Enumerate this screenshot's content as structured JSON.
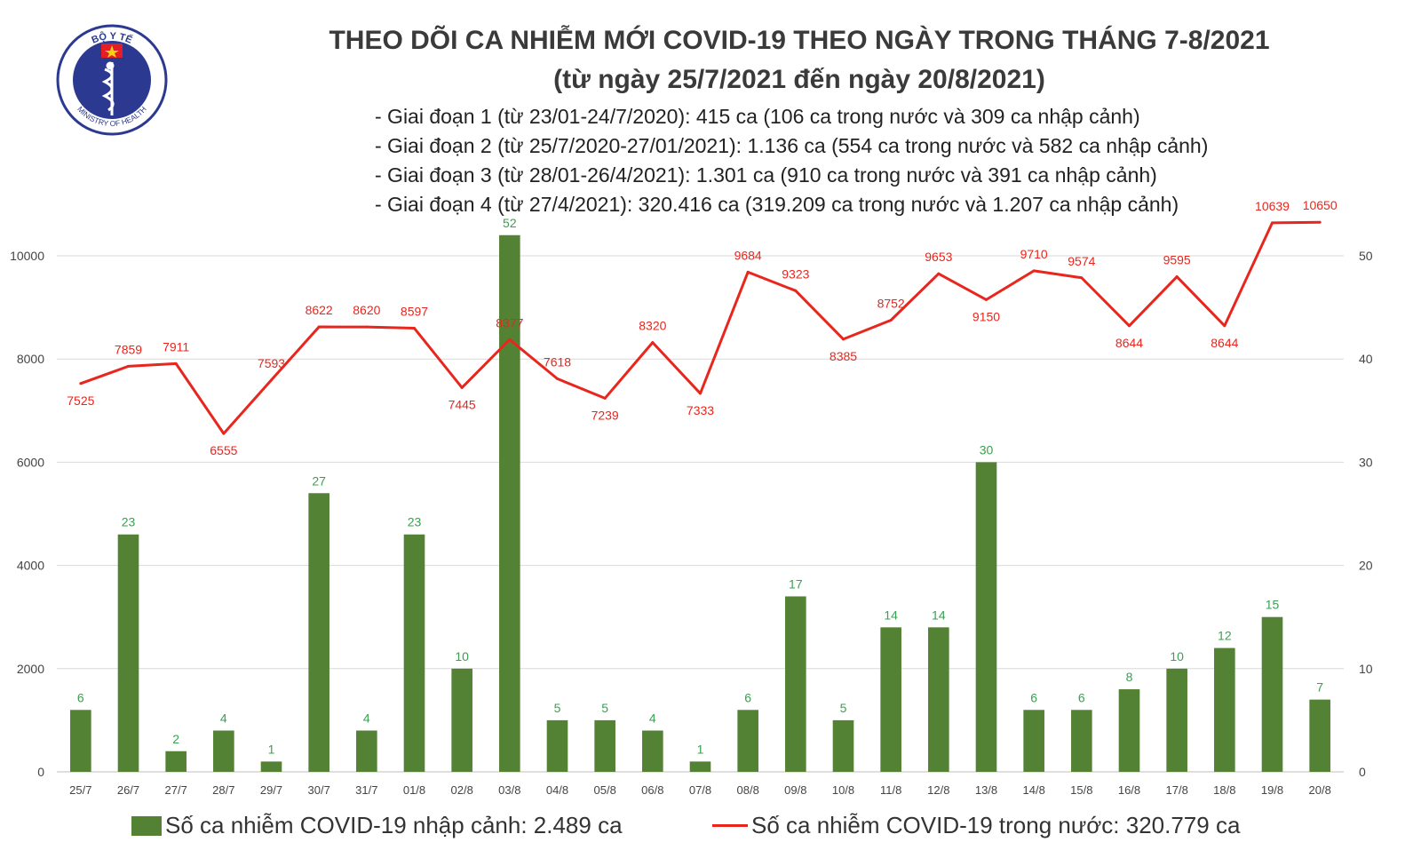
{
  "logo": {
    "top_text": "BỘ Y TẾ",
    "bottom_text": "MINISTRY OF HEALTH",
    "icon": "caduceus-icon",
    "ring_color": "#2b3990",
    "star_color": "#f7d117",
    "star_bg": "#e31e24"
  },
  "title": {
    "line1": "THEO DÕI CA NHIỄM MỚI COVID-19 THEO NGÀY TRONG THÁNG 7-8/2021",
    "line2": "(từ ngày 25/7/2021 đến ngày 20/8/2021)"
  },
  "phases": [
    "- Giai đoạn 1 (từ 23/01-24/7/2020): 415 ca (106 ca trong nước và 309 ca nhập cảnh)",
    "- Giai đoạn 2 (từ 25/7/2020-27/01/2021): 1.136 ca (554 ca trong nước và 582 ca nhập cảnh)",
    "- Giai đoạn 3 (từ 28/01-26/4/2021): 1.301 ca (910 ca trong nước và 391 ca nhập cảnh)",
    "- Giai đoạn 4 (từ 27/4/2021): 320.416 ca (319.209 ca trong nước và 1.207 ca nhập cảnh)"
  ],
  "legend": {
    "bars": "Số ca nhiễm COVID-19 nhập cảnh: 2.489 ca",
    "line": "Số ca nhiễm COVID-19 trong nước: 320.779 ca"
  },
  "chart_data": {
    "type": "bar+line",
    "categories": [
      "25/7",
      "26/7",
      "27/7",
      "28/7",
      "29/7",
      "30/7",
      "31/7",
      "01/8",
      "02/8",
      "03/8",
      "04/8",
      "05/8",
      "06/8",
      "07/8",
      "08/8",
      "09/8",
      "10/8",
      "11/8",
      "12/8",
      "13/8",
      "14/8",
      "15/8",
      "16/8",
      "17/8",
      "18/8",
      "19/8",
      "20/8"
    ],
    "series": [
      {
        "name": "Số ca nhiễm COVID-19 nhập cảnh: 2.489 ca",
        "type": "bar",
        "axis": "right",
        "color": "#548235",
        "label_color": "#3aa050",
        "values": [
          6,
          23,
          2,
          4,
          1,
          27,
          4,
          23,
          10,
          52,
          5,
          5,
          4,
          1,
          6,
          17,
          5,
          14,
          14,
          30,
          6,
          6,
          8,
          10,
          12,
          15,
          7
        ]
      },
      {
        "name": "Số ca nhiễm COVID-19 trong nước: 320.779 ca",
        "type": "line",
        "axis": "left",
        "color": "#e8261e",
        "label_color": "#e8261e",
        "values": [
          7525,
          7859,
          7911,
          6555,
          7593,
          8622,
          8620,
          8597,
          7445,
          8377,
          7618,
          7239,
          8320,
          7333,
          9684,
          9323,
          8385,
          8752,
          9653,
          9150,
          9710,
          9574,
          8644,
          9595,
          8644,
          10639,
          10650
        ]
      }
    ],
    "y_left": {
      "ylim": [
        0,
        10000
      ],
      "ticks": [
        "0",
        "2000",
        "4000",
        "6000",
        "8000",
        "10000"
      ]
    },
    "y_right": {
      "ylim": [
        0,
        50
      ],
      "ticks": [
        "0",
        "10",
        "20",
        "30",
        "40",
        "50"
      ]
    },
    "grid": true,
    "legend_position": "bottom"
  }
}
